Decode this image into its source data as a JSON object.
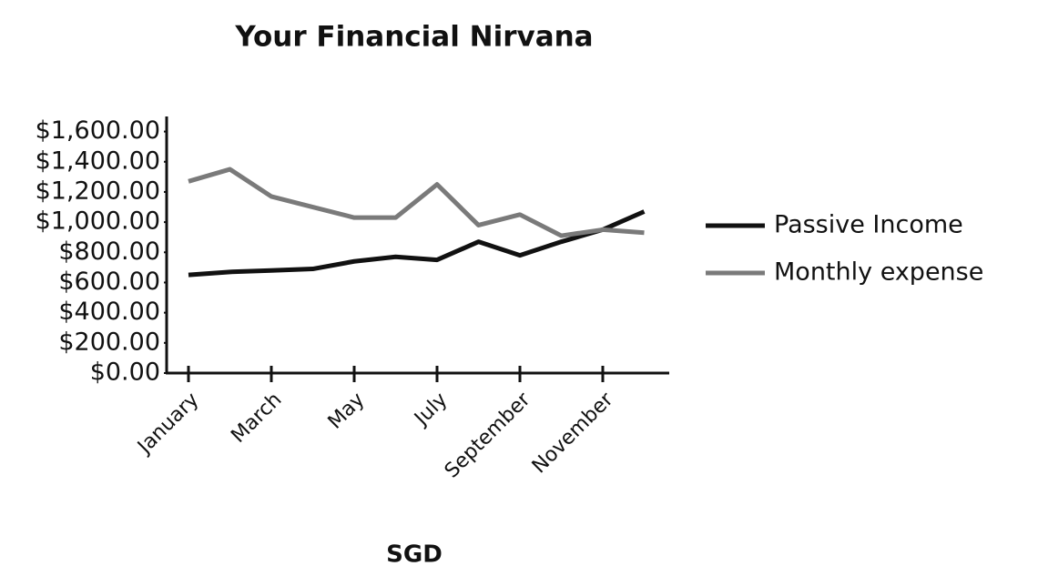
{
  "chart_data": {
    "type": "line",
    "title": "Your Financial Nirvana",
    "x_label": "SGD",
    "categories": [
      "January",
      null,
      "March",
      null,
      "May",
      null,
      "July",
      null,
      "September",
      null,
      "November",
      null
    ],
    "series": [
      {
        "name": "Passive Income",
        "color": "#111111",
        "values": [
          650,
          670,
          680,
          690,
          740,
          770,
          750,
          870,
          780,
          870,
          950,
          1070
        ]
      },
      {
        "name": "Monthly expense",
        "color": "#7a7a7a",
        "values": [
          1270,
          1350,
          1170,
          1100,
          1030,
          1030,
          1250,
          980,
          1050,
          910,
          950,
          930
        ]
      }
    ],
    "ylim": [
      0,
      1700
    ],
    "yticks": [
      {
        "value": 0,
        "label": "$0.00"
      },
      {
        "value": 200,
        "label": "$200.00"
      },
      {
        "value": 400,
        "label": "$400.00"
      },
      {
        "value": 600,
        "label": "$600.00"
      },
      {
        "value": 800,
        "label": "$800.00"
      },
      {
        "value": 1000,
        "label": "$1,000.00"
      },
      {
        "value": 1200,
        "label": "$1,200.00"
      },
      {
        "value": 1400,
        "label": "$1,400.00"
      },
      {
        "value": 1600,
        "label": "$1,600.00"
      }
    ],
    "legend": "right",
    "grid": false
  }
}
